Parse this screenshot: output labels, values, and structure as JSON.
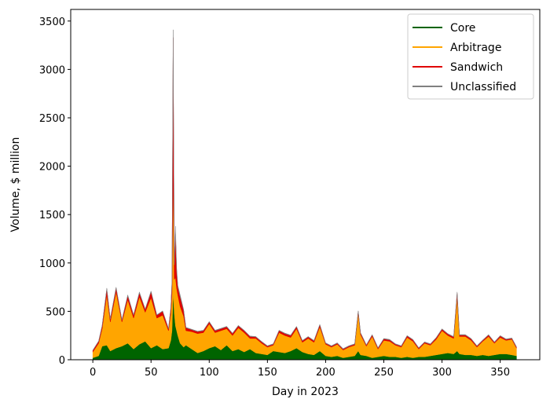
{
  "chart_data": {
    "type": "area",
    "stacked": true,
    "xlabel": "Day in 2023",
    "ylabel": "Volume, $ million",
    "xlim": [
      -19,
      384
    ],
    "ylim": [
      0,
      3620
    ],
    "xticks": [
      0,
      50,
      100,
      150,
      200,
      250,
      300,
      350
    ],
    "yticks": [
      0,
      500,
      1000,
      1500,
      2000,
      2500,
      3000,
      3500
    ],
    "grid": false,
    "legend_position": "top-right",
    "series": [
      {
        "name": "Core",
        "color": "#006400",
        "points": [
          [
            0,
            20
          ],
          [
            5,
            40
          ],
          [
            8,
            140
          ],
          [
            12,
            150
          ],
          [
            15,
            90
          ],
          [
            20,
            120
          ],
          [
            25,
            140
          ],
          [
            30,
            170
          ],
          [
            35,
            110
          ],
          [
            40,
            160
          ],
          [
            45,
            190
          ],
          [
            50,
            120
          ],
          [
            55,
            150
          ],
          [
            60,
            110
          ],
          [
            65,
            120
          ],
          [
            67,
            200
          ],
          [
            68,
            300
          ],
          [
            69,
            700
          ],
          [
            70,
            480
          ],
          [
            71,
            350
          ],
          [
            72,
            300
          ],
          [
            73,
            250
          ],
          [
            75,
            170
          ],
          [
            78,
            130
          ],
          [
            80,
            150
          ],
          [
            85,
            110
          ],
          [
            90,
            70
          ],
          [
            95,
            90
          ],
          [
            100,
            120
          ],
          [
            105,
            140
          ],
          [
            110,
            100
          ],
          [
            115,
            150
          ],
          [
            120,
            90
          ],
          [
            125,
            110
          ],
          [
            130,
            80
          ],
          [
            135,
            110
          ],
          [
            140,
            70
          ],
          [
            145,
            60
          ],
          [
            150,
            50
          ],
          [
            155,
            90
          ],
          [
            160,
            80
          ],
          [
            165,
            70
          ],
          [
            170,
            90
          ],
          [
            175,
            120
          ],
          [
            180,
            80
          ],
          [
            185,
            60
          ],
          [
            190,
            50
          ],
          [
            195,
            90
          ],
          [
            200,
            40
          ],
          [
            205,
            30
          ],
          [
            210,
            40
          ],
          [
            215,
            20
          ],
          [
            220,
            30
          ],
          [
            225,
            40
          ],
          [
            228,
            90
          ],
          [
            230,
            50
          ],
          [
            235,
            40
          ],
          [
            240,
            20
          ],
          [
            245,
            30
          ],
          [
            250,
            40
          ],
          [
            255,
            30
          ],
          [
            260,
            30
          ],
          [
            265,
            20
          ],
          [
            270,
            30
          ],
          [
            275,
            20
          ],
          [
            280,
            30
          ],
          [
            285,
            30
          ],
          [
            290,
            40
          ],
          [
            295,
            50
          ],
          [
            300,
            60
          ],
          [
            305,
            70
          ],
          [
            310,
            60
          ],
          [
            313,
            90
          ],
          [
            315,
            60
          ],
          [
            320,
            50
          ],
          [
            325,
            50
          ],
          [
            330,
            40
          ],
          [
            335,
            50
          ],
          [
            340,
            40
          ],
          [
            345,
            50
          ],
          [
            350,
            60
          ],
          [
            355,
            60
          ],
          [
            360,
            50
          ],
          [
            364,
            40
          ]
        ]
      },
      {
        "name": "Arbitrage",
        "color": "#ffa500",
        "points": [
          [
            0,
            60
          ],
          [
            5,
            130
          ],
          [
            8,
            180
          ],
          [
            12,
            520
          ],
          [
            15,
            300
          ],
          [
            20,
            580
          ],
          [
            25,
            250
          ],
          [
            30,
            450
          ],
          [
            35,
            320
          ],
          [
            40,
            490
          ],
          [
            45,
            300
          ],
          [
            50,
            520
          ],
          [
            55,
            280
          ],
          [
            60,
            350
          ],
          [
            65,
            180
          ],
          [
            67,
            280
          ],
          [
            68,
            380
          ],
          [
            69,
            1200
          ],
          [
            70,
            350
          ],
          [
            71,
            500
          ],
          [
            72,
            440
          ],
          [
            73,
            420
          ],
          [
            75,
            380
          ],
          [
            78,
            320
          ],
          [
            80,
            150
          ],
          [
            85,
            180
          ],
          [
            90,
            200
          ],
          [
            95,
            190
          ],
          [
            100,
            250
          ],
          [
            105,
            140
          ],
          [
            110,
            200
          ],
          [
            115,
            170
          ],
          [
            120,
            160
          ],
          [
            125,
            220
          ],
          [
            130,
            200
          ],
          [
            135,
            110
          ],
          [
            140,
            150
          ],
          [
            145,
            110
          ],
          [
            150,
            80
          ],
          [
            155,
            60
          ],
          [
            160,
            200
          ],
          [
            165,
            180
          ],
          [
            170,
            140
          ],
          [
            175,
            200
          ],
          [
            180,
            100
          ],
          [
            185,
            160
          ],
          [
            190,
            130
          ],
          [
            195,
            250
          ],
          [
            200,
            120
          ],
          [
            205,
            100
          ],
          [
            210,
            120
          ],
          [
            215,
            80
          ],
          [
            220,
            100
          ],
          [
            225,
            110
          ],
          [
            228,
            390
          ],
          [
            230,
            210
          ],
          [
            235,
            100
          ],
          [
            240,
            220
          ],
          [
            245,
            80
          ],
          [
            250,
            160
          ],
          [
            255,
            160
          ],
          [
            260,
            120
          ],
          [
            265,
            110
          ],
          [
            270,
            200
          ],
          [
            275,
            170
          ],
          [
            280,
            80
          ],
          [
            285,
            140
          ],
          [
            290,
            110
          ],
          [
            295,
            160
          ],
          [
            300,
            240
          ],
          [
            305,
            180
          ],
          [
            310,
            160
          ],
          [
            313,
            560
          ],
          [
            315,
            180
          ],
          [
            320,
            190
          ],
          [
            325,
            150
          ],
          [
            330,
            90
          ],
          [
            335,
            140
          ],
          [
            340,
            200
          ],
          [
            345,
            120
          ],
          [
            350,
            170
          ],
          [
            355,
            140
          ],
          [
            360,
            160
          ],
          [
            364,
            80
          ]
        ]
      },
      {
        "name": "Sandwich",
        "color": "#e00000",
        "points": [
          [
            0,
            15
          ],
          [
            5,
            20
          ],
          [
            8,
            30
          ],
          [
            12,
            60
          ],
          [
            15,
            30
          ],
          [
            20,
            40
          ],
          [
            25,
            20
          ],
          [
            30,
            40
          ],
          [
            35,
            30
          ],
          [
            40,
            40
          ],
          [
            45,
            30
          ],
          [
            50,
            60
          ],
          [
            55,
            30
          ],
          [
            60,
            40
          ],
          [
            65,
            20
          ],
          [
            67,
            50
          ],
          [
            68,
            120
          ],
          [
            69,
            1430
          ],
          [
            70,
            150
          ],
          [
            71,
            450
          ],
          [
            72,
            180
          ],
          [
            73,
            80
          ],
          [
            75,
            100
          ],
          [
            78,
            60
          ],
          [
            80,
            30
          ],
          [
            85,
            20
          ],
          [
            90,
            20
          ],
          [
            95,
            20
          ],
          [
            100,
            20
          ],
          [
            105,
            20
          ],
          [
            110,
            20
          ],
          [
            115,
            20
          ],
          [
            120,
            20
          ],
          [
            125,
            20
          ],
          [
            130,
            20
          ],
          [
            135,
            20
          ],
          [
            140,
            15
          ],
          [
            145,
            15
          ],
          [
            150,
            10
          ],
          [
            155,
            10
          ],
          [
            160,
            20
          ],
          [
            165,
            20
          ],
          [
            170,
            20
          ],
          [
            175,
            20
          ],
          [
            180,
            15
          ],
          [
            185,
            15
          ],
          [
            190,
            15
          ],
          [
            195,
            20
          ],
          [
            200,
            10
          ],
          [
            205,
            10
          ],
          [
            210,
            10
          ],
          [
            215,
            10
          ],
          [
            220,
            10
          ],
          [
            225,
            10
          ],
          [
            228,
            20
          ],
          [
            230,
            15
          ],
          [
            235,
            10
          ],
          [
            240,
            15
          ],
          [
            245,
            10
          ],
          [
            250,
            15
          ],
          [
            255,
            15
          ],
          [
            260,
            10
          ],
          [
            265,
            10
          ],
          [
            270,
            15
          ],
          [
            275,
            15
          ],
          [
            280,
            10
          ],
          [
            285,
            10
          ],
          [
            290,
            10
          ],
          [
            295,
            15
          ],
          [
            300,
            15
          ],
          [
            305,
            15
          ],
          [
            310,
            15
          ],
          [
            313,
            40
          ],
          [
            315,
            15
          ],
          [
            320,
            15
          ],
          [
            325,
            15
          ],
          [
            330,
            10
          ],
          [
            335,
            10
          ],
          [
            340,
            15
          ],
          [
            345,
            10
          ],
          [
            350,
            15
          ],
          [
            355,
            10
          ],
          [
            360,
            10
          ],
          [
            364,
            10
          ]
        ]
      },
      {
        "name": "Unclassified",
        "color": "#808080",
        "points": [
          [
            0,
            5
          ],
          [
            5,
            5
          ],
          [
            8,
            5
          ],
          [
            12,
            10
          ],
          [
            15,
            5
          ],
          [
            20,
            10
          ],
          [
            25,
            5
          ],
          [
            30,
            10
          ],
          [
            35,
            5
          ],
          [
            40,
            10
          ],
          [
            45,
            5
          ],
          [
            50,
            10
          ],
          [
            55,
            5
          ],
          [
            60,
            5
          ],
          [
            65,
            5
          ],
          [
            67,
            10
          ],
          [
            68,
            20
          ],
          [
            69,
            80
          ],
          [
            70,
            20
          ],
          [
            71,
            80
          ],
          [
            72,
            30
          ],
          [
            73,
            20
          ],
          [
            75,
            20
          ],
          [
            78,
            10
          ],
          [
            80,
            5
          ],
          [
            85,
            5
          ],
          [
            90,
            5
          ],
          [
            95,
            5
          ],
          [
            100,
            5
          ],
          [
            105,
            5
          ],
          [
            110,
            5
          ],
          [
            115,
            5
          ],
          [
            120,
            5
          ],
          [
            125,
            5
          ],
          [
            130,
            5
          ],
          [
            135,
            5
          ],
          [
            140,
            5
          ],
          [
            145,
            5
          ],
          [
            150,
            5
          ],
          [
            155,
            5
          ],
          [
            160,
            5
          ],
          [
            165,
            5
          ],
          [
            170,
            5
          ],
          [
            175,
            5
          ],
          [
            180,
            5
          ],
          [
            185,
            5
          ],
          [
            190,
            5
          ],
          [
            195,
            5
          ],
          [
            200,
            5
          ],
          [
            205,
            5
          ],
          [
            210,
            5
          ],
          [
            215,
            5
          ],
          [
            220,
            5
          ],
          [
            225,
            5
          ],
          [
            228,
            5
          ],
          [
            230,
            5
          ],
          [
            235,
            5
          ],
          [
            240,
            5
          ],
          [
            245,
            5
          ],
          [
            250,
            5
          ],
          [
            255,
            5
          ],
          [
            260,
            5
          ],
          [
            265,
            5
          ],
          [
            270,
            5
          ],
          [
            275,
            5
          ],
          [
            280,
            5
          ],
          [
            285,
            5
          ],
          [
            290,
            5
          ],
          [
            295,
            5
          ],
          [
            300,
            5
          ],
          [
            305,
            5
          ],
          [
            310,
            5
          ],
          [
            313,
            10
          ],
          [
            315,
            5
          ],
          [
            320,
            5
          ],
          [
            325,
            5
          ],
          [
            330,
            5
          ],
          [
            335,
            5
          ],
          [
            340,
            5
          ],
          [
            345,
            5
          ],
          [
            350,
            5
          ],
          [
            355,
            5
          ],
          [
            360,
            5
          ],
          [
            364,
            5
          ]
        ]
      }
    ]
  }
}
